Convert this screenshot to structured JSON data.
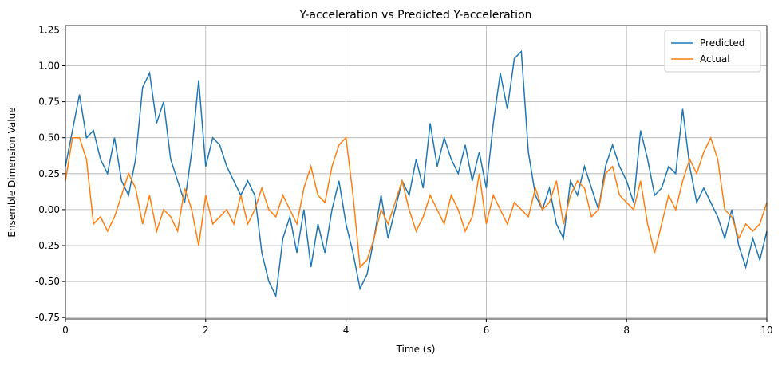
{
  "chart_data": {
    "type": "line",
    "title": "Y-acceleration vs Predicted Y-acceleration",
    "x_label": "Time (s)",
    "y_label": "Ensemble Dimension Value",
    "x": [
      0,
      0.1,
      0.2,
      0.3,
      0.4,
      0.5,
      0.6,
      0.7,
      0.8,
      0.9,
      1,
      1.1,
      1.2,
      1.3,
      1.4,
      1.5,
      1.6,
      1.7,
      1.8,
      1.9,
      2,
      2.1,
      2.2,
      2.3,
      2.4,
      2.5,
      2.6,
      2.7,
      2.8,
      2.9,
      3,
      3.1,
      3.2,
      3.3,
      3.4,
      3.5,
      3.6,
      3.7,
      3.8,
      3.9,
      4,
      4.1,
      4.2,
      4.3,
      4.4,
      4.5,
      4.6,
      4.7,
      4.8,
      4.9,
      5,
      5.1,
      5.2,
      5.3,
      5.4,
      5.5,
      5.6,
      5.7,
      5.8,
      5.9,
      6,
      6.1,
      6.2,
      6.3,
      6.4,
      6.5,
      6.6,
      6.7,
      6.8,
      6.9,
      7,
      7.1,
      7.2,
      7.3,
      7.4,
      7.5,
      7.6,
      7.7,
      7.8,
      7.9,
      8,
      8.1,
      8.2,
      8.3,
      8.4,
      8.5,
      8.6,
      8.7,
      8.8,
      8.9,
      9,
      9.1,
      9.2,
      9.3,
      9.4,
      9.5,
      9.6,
      9.7,
      9.8,
      9.9,
      10
    ],
    "series": [
      {
        "name": "Predicted",
        "color": "#1f77b4",
        "values": [
          0.3,
          0.55,
          0.8,
          0.5,
          0.55,
          0.35,
          0.25,
          0.5,
          0.2,
          0.1,
          0.35,
          0.85,
          0.95,
          0.6,
          0.75,
          0.35,
          0.2,
          0.05,
          0.4,
          0.9,
          0.3,
          0.5,
          0.45,
          0.3,
          0.2,
          0.1,
          0.2,
          0.1,
          -0.3,
          -0.5,
          -0.6,
          -0.2,
          -0.05,
          -0.3,
          0.0,
          -0.4,
          -0.1,
          -0.3,
          0.0,
          0.2,
          -0.1,
          -0.3,
          -0.55,
          -0.45,
          -0.2,
          0.1,
          -0.2,
          0.0,
          0.2,
          0.1,
          0.35,
          0.15,
          0.6,
          0.3,
          0.5,
          0.35,
          0.25,
          0.45,
          0.2,
          0.4,
          0.15,
          0.6,
          0.95,
          0.7,
          1.05,
          1.1,
          0.4,
          0.1,
          0.0,
          0.15,
          -0.1,
          -0.2,
          0.2,
          0.1,
          0.3,
          0.15,
          0.0,
          0.3,
          0.45,
          0.3,
          0.2,
          0.05,
          0.55,
          0.35,
          0.1,
          0.15,
          0.3,
          0.25,
          0.7,
          0.3,
          0.05,
          0.15,
          0.05,
          -0.05,
          -0.2,
          0.0,
          -0.25,
          -0.4,
          -0.2,
          -0.35,
          -0.15
        ]
      },
      {
        "name": "Actual",
        "color": "#ff7f0e",
        "values": [
          0.2,
          0.5,
          0.5,
          0.35,
          -0.1,
          -0.05,
          -0.15,
          -0.05,
          0.1,
          0.25,
          0.15,
          -0.1,
          0.1,
          -0.15,
          0.0,
          -0.05,
          -0.15,
          0.15,
          0.0,
          -0.25,
          0.1,
          -0.1,
          -0.05,
          0.0,
          -0.1,
          0.1,
          -0.1,
          0.0,
          0.15,
          0.0,
          -0.05,
          0.1,
          0.0,
          -0.1,
          0.15,
          0.3,
          0.1,
          0.05,
          0.3,
          0.45,
          0.5,
          0.1,
          -0.4,
          -0.35,
          -0.2,
          0.0,
          -0.1,
          0.05,
          0.2,
          0.0,
          -0.15,
          -0.05,
          0.1,
          0.0,
          -0.1,
          0.1,
          0.0,
          -0.15,
          -0.05,
          0.25,
          -0.1,
          0.1,
          0.0,
          -0.1,
          0.05,
          0.0,
          -0.05,
          0.15,
          0.0,
          0.05,
          0.2,
          -0.1,
          0.1,
          0.2,
          0.15,
          -0.05,
          0.0,
          0.25,
          0.3,
          0.1,
          0.05,
          0.0,
          0.2,
          -0.1,
          -0.3,
          -0.1,
          0.1,
          0.0,
          0.2,
          0.35,
          0.25,
          0.4,
          0.5,
          0.35,
          0.0,
          -0.05,
          -0.2,
          -0.1,
          -0.15,
          -0.1,
          0.05
        ]
      }
    ],
    "xlim": [
      0,
      10
    ],
    "xticks": [
      0,
      2,
      4,
      6,
      8,
      10
    ],
    "ylim": [
      -0.76,
      1.28
    ],
    "yticks": [
      -0.75,
      {
        "value": -0.5,
        "label": "-0.50"
      },
      -0.25,
      {
        "value": 0,
        "label": "0.00"
      },
      0.25,
      {
        "value": 0.5,
        "label": "0.50"
      },
      0.75,
      {
        "value": 1,
        "label": "1.00"
      },
      1.25
    ],
    "grid": true,
    "legend": "upper right"
  }
}
